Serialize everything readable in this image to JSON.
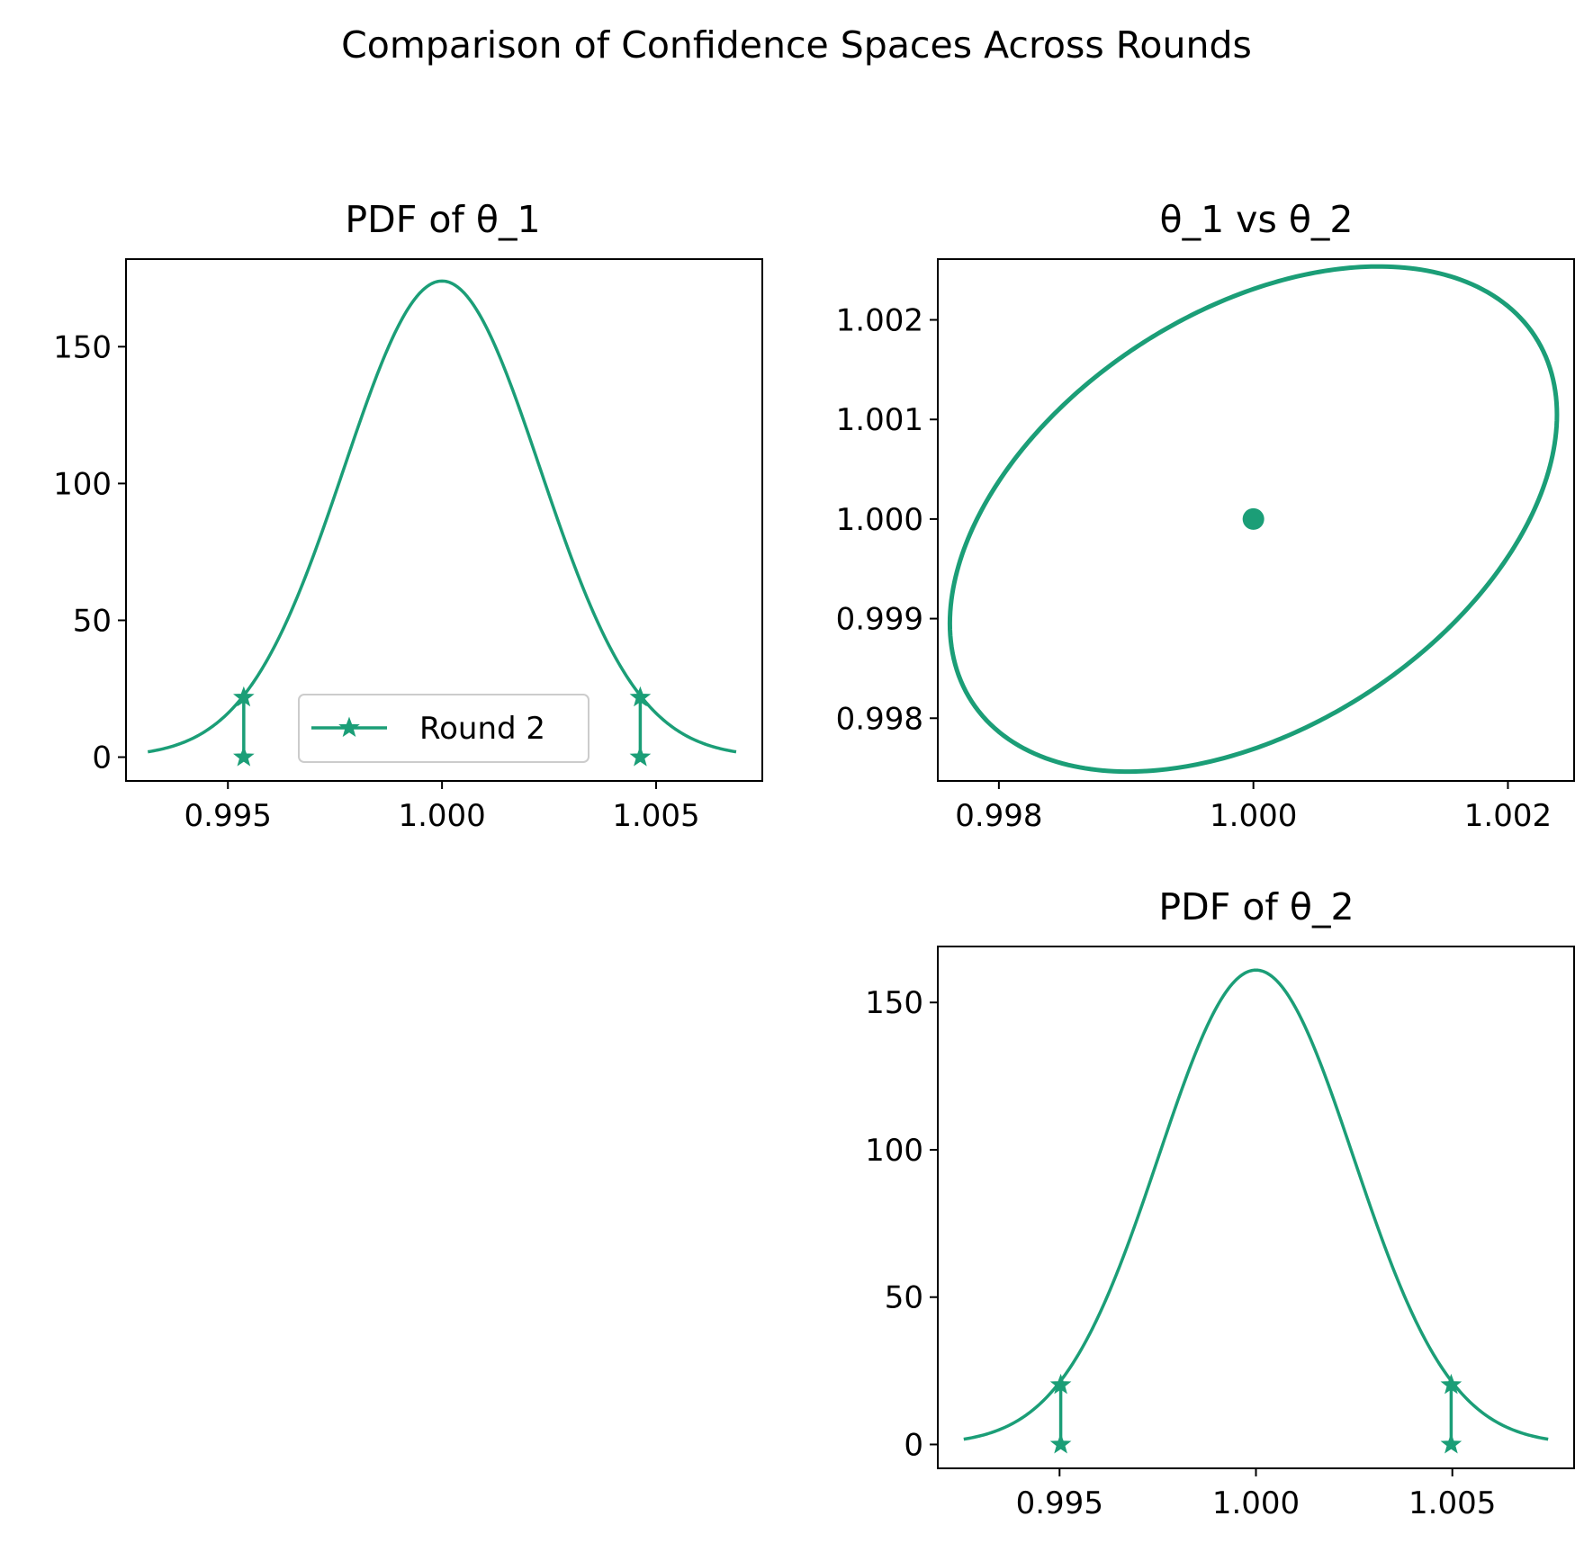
{
  "figure": {
    "suptitle": "Comparison of Confidence Spaces Across Rounds",
    "color": "#1b9e77"
  },
  "chart_data": [
    {
      "type": "line",
      "title": "PDF of θ_1",
      "xlabel": "",
      "ylabel": "",
      "xlim": [
        0.99262,
        1.00748
      ],
      "ylim": [
        -8.7,
        182.0
      ],
      "xticks": [
        0.995,
        1.0,
        1.005
      ],
      "xtick_labels": [
        "0.995",
        "1.000",
        "1.005"
      ],
      "yticks": [
        0,
        50,
        100,
        150
      ],
      "ytick_labels": [
        "0",
        "50",
        "100",
        "150"
      ],
      "curve": {
        "mean": 1.0,
        "peak": 174,
        "sigma": 0.00229,
        "x_range": [
          0.99313,
          1.00687
        ]
      },
      "bounds": [
        {
          "x": 0.99537,
          "y_bottom": 0,
          "y_top": 21.8
        },
        {
          "x": 1.00463,
          "y_bottom": 0,
          "y_top": 21.8
        }
      ],
      "legend": {
        "label": "Round 2",
        "location": "lower center"
      },
      "grid": false
    },
    {
      "type": "scatter",
      "title": "θ_1 vs θ_2",
      "xlabel": "",
      "ylabel": "",
      "xlim": [
        0.99752,
        1.00252
      ],
      "ylim": [
        0.99737,
        1.00261
      ],
      "xticks": [
        0.998,
        1.0,
        1.002
      ],
      "xtick_labels": [
        "0.998",
        "1.000",
        "1.002"
      ],
      "yticks": [
        0.998,
        0.999,
        1.0,
        1.001,
        1.002
      ],
      "ytick_labels": [
        "0.998",
        "0.999",
        "1.000",
        "1.001",
        "1.002"
      ],
      "center": {
        "x": 1.0,
        "y": 1.0
      },
      "ellipse": {
        "left": {
          "x": 0.99767,
          "y": 0.99947
        },
        "right": {
          "x": 1.00233,
          "y": 1.00053
        },
        "top": {
          "x": 1.00051,
          "y": 1.00248
        },
        "bottom": {
          "x": 0.99949,
          "y": 0.99752
        }
      },
      "grid": false
    },
    {
      "type": "line",
      "title": "PDF of θ_2",
      "xlabel": "",
      "ylabel": "",
      "xlim": [
        0.9919,
        1.0081
      ],
      "ylim": [
        -8.1,
        169.0
      ],
      "xticks": [
        0.995,
        1.0,
        1.005
      ],
      "xtick_labels": [
        "0.995",
        "1.000",
        "1.005"
      ],
      "yticks": [
        0,
        50,
        100,
        150
      ],
      "ytick_labels": [
        "0",
        "50",
        "100",
        "150"
      ],
      "curve": {
        "mean": 1.0,
        "peak": 161,
        "sigma": 0.00248,
        "x_range": [
          0.99256,
          1.00744
        ]
      },
      "bounds": [
        {
          "x": 0.99503,
          "y_bottom": 0,
          "y_top": 20.2
        },
        {
          "x": 1.00497,
          "y_bottom": 0,
          "y_top": 20.2
        }
      ],
      "grid": false
    }
  ]
}
